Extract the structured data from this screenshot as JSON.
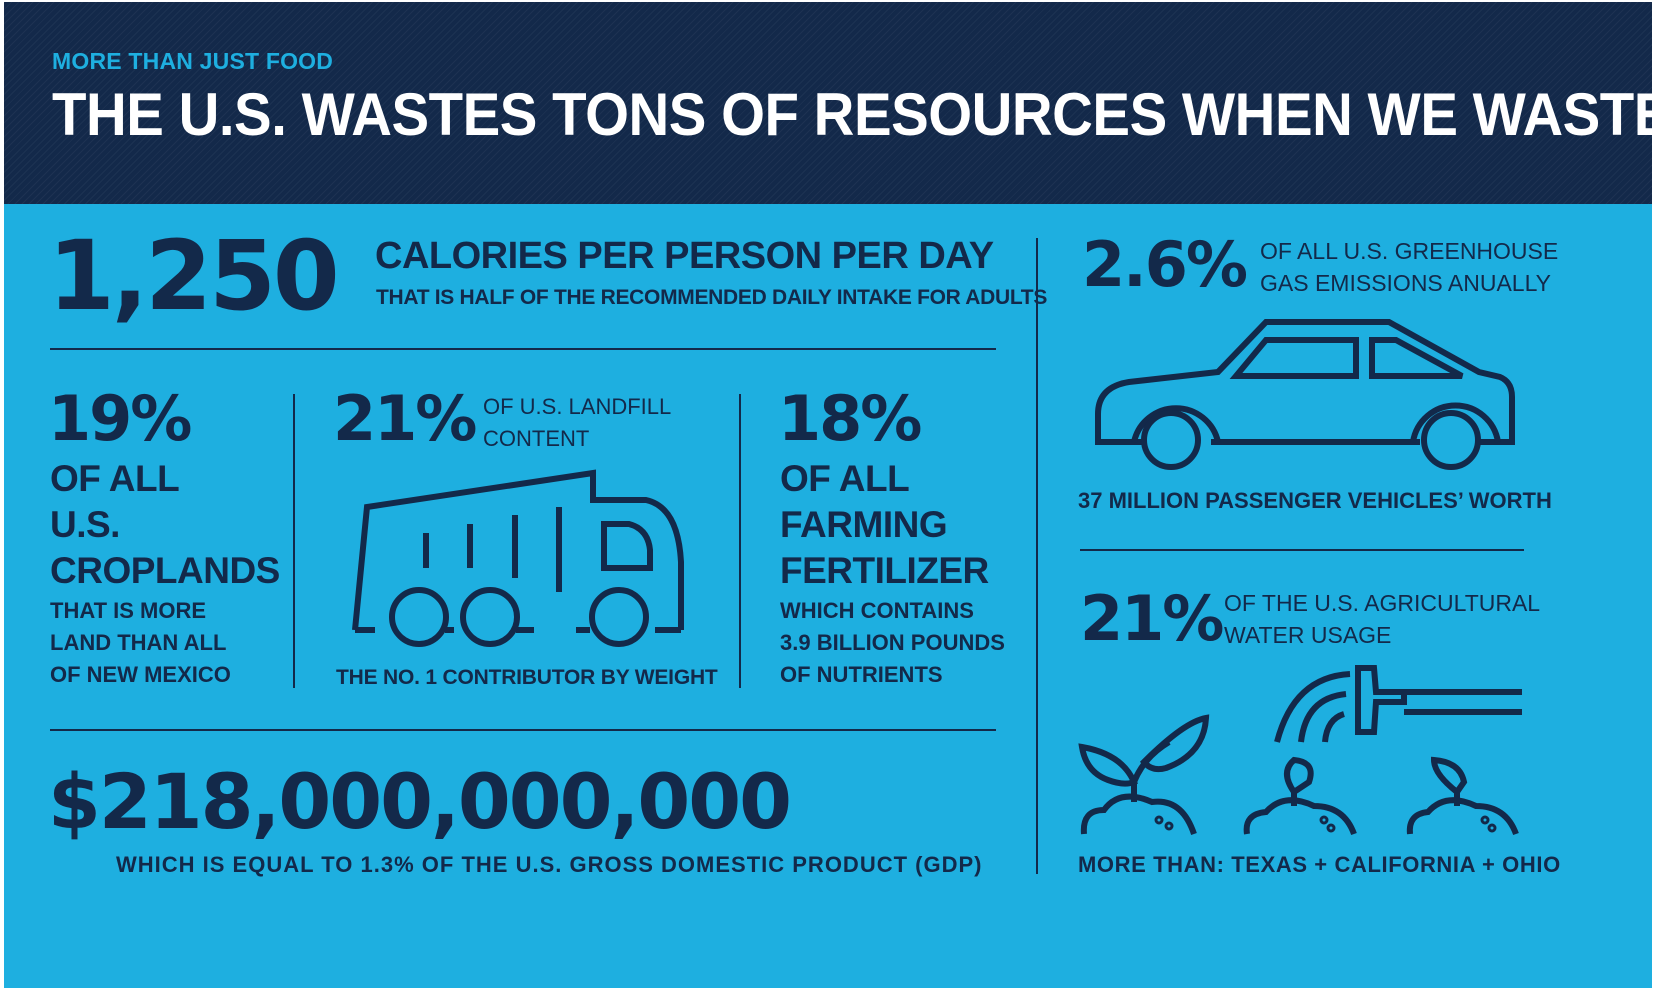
{
  "header": {
    "kicker": "MORE THAN JUST FOOD",
    "title": "THE U.S. WASTES TONS OF RESOURCES WHEN WE WASTE FOOD"
  },
  "calories": {
    "value": "1,250",
    "title": "CALORIES PER PERSON PER DAY",
    "subtitle": "THAT IS HALF OF THE RECOMMENDED DAILY INTAKE FOR ADULTS"
  },
  "croplands": {
    "value": "19%",
    "lines": [
      "OF ALL",
      "U.S.",
      "CROPLANDS"
    ],
    "note_lines": [
      "THAT IS MORE",
      "LAND THAN ALL",
      "OF NEW MEXICO"
    ]
  },
  "landfill": {
    "value": "21%",
    "label_lines": [
      "OF U.S. LANDFILL",
      "CONTENT"
    ],
    "icon": "garbage-truck-icon",
    "caption": "THE NO. 1 CONTRIBUTOR BY WEIGHT"
  },
  "fertilizer": {
    "value": "18%",
    "lines": [
      "OF ALL",
      "FARMING",
      "FERTILIZER"
    ],
    "note_lines": [
      "WHICH CONTAINS",
      "3.9 BILLION POUNDS",
      "OF NUTRIENTS"
    ]
  },
  "gdp": {
    "value": "$218,000,000,000",
    "caption": "WHICH IS EQUAL TO 1.3% OF THE U.S. GROSS DOMESTIC PRODUCT (GDP)"
  },
  "emissions": {
    "value": "2.6%",
    "label_lines": [
      "OF ALL U.S. GREENHOUSE",
      "GAS EMISSIONS ANUALLY"
    ],
    "icon": "car-icon",
    "caption": "37 MILLION PASSENGER VEHICLES’ WORTH"
  },
  "water": {
    "value": "21%",
    "label_lines": [
      "OF THE U.S. AGRICULTURAL",
      "WATER USAGE"
    ],
    "icons": [
      "sprinkler-icon",
      "seedling-icon"
    ],
    "caption": "MORE THAN: TEXAS + CALIFORNIA + OHIO"
  },
  "colors": {
    "background": "#1eafe0",
    "navy": "#13294a",
    "white": "#ffffff"
  }
}
